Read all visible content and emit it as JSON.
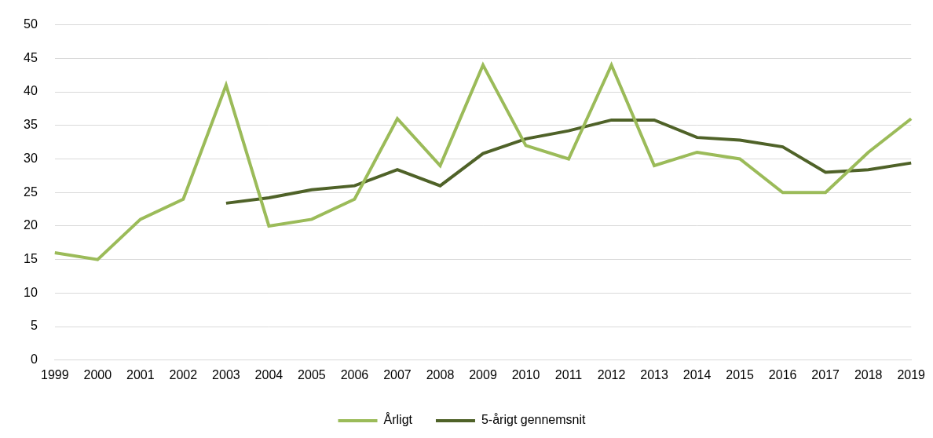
{
  "chart_data": {
    "type": "line",
    "categories": [
      "1999",
      "2000",
      "2001",
      "2002",
      "2003",
      "2004",
      "2005",
      "2006",
      "2007",
      "2008",
      "2009",
      "2010",
      "2011",
      "2012",
      "2013",
      "2014",
      "2015",
      "2016",
      "2017",
      "2018",
      "2019"
    ],
    "series": [
      {
        "name": "Årligt",
        "color": "#9bbb59",
        "values": [
          16,
          15,
          21,
          24,
          41,
          20,
          21,
          24,
          36,
          29,
          44,
          32,
          30,
          44,
          29,
          31,
          30,
          25,
          25,
          31,
          36
        ]
      },
      {
        "name": "5-årigt gennemsnit",
        "color": "#4f6228",
        "values": [
          null,
          null,
          null,
          null,
          23.4,
          24.2,
          25.4,
          26,
          28.4,
          26,
          30.8,
          33,
          34.2,
          35.8,
          35.8,
          33.2,
          32.8,
          31.8,
          28,
          28.4,
          29.4
        ]
      }
    ],
    "ylim": [
      0,
      50
    ],
    "yticks": [
      0,
      5,
      10,
      15,
      20,
      25,
      30,
      35,
      40,
      45,
      50
    ],
    "grid": true,
    "legend": "bottom"
  }
}
